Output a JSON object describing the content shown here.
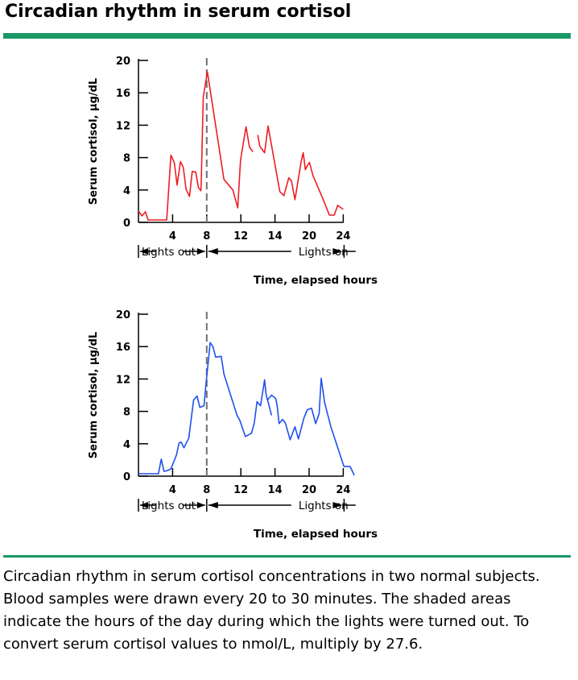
{
  "header": {
    "title": "Circadian rhythm in serum cortisol"
  },
  "caption": "Circadian rhythm in serum cortisol concentrations in two normal subjects. Blood samples were drawn every 20 to 30 minutes. The shaded areas indicate the hours of the day during which the lights were turned out. To convert serum cortisol values to nmol/L, multiply by 27.6.",
  "colors": {
    "accent": "#1a9866",
    "series_top": "#ee1c24",
    "series_bottom": "#1f4ff0"
  },
  "chart_data": [
    {
      "type": "line",
      "ylabel": "Serum cortisol, µg/dL",
      "xlabel": "Time, elapsed hours",
      "yticks": [
        0,
        4,
        8,
        12,
        16,
        20
      ],
      "xticks": [
        4,
        8,
        12,
        14,
        20,
        24
      ],
      "ylim": [
        0,
        20
      ],
      "lights_out_label": "Lights out",
      "lights_on_label": "Lights on",
      "series": [
        {
          "segments": [
            [
              [
                0,
                1.4
              ],
              [
                0.5,
                0.8
              ],
              [
                1,
                1.3
              ],
              [
                1.4,
                0.3
              ],
              [
                2,
                0.3
              ],
              [
                3,
                0.3
              ],
              [
                3.6,
                0.3
              ],
              [
                4.1,
                0.3
              ],
              [
                4.7,
                8.3
              ],
              [
                5.2,
                7.4
              ],
              [
                5.6,
                4.6
              ],
              [
                6.1,
                7.5
              ],
              [
                6.5,
                6.8
              ],
              [
                6.9,
                4.1
              ],
              [
                7.4,
                3.2
              ],
              [
                7.8,
                6.3
              ],
              [
                8.3,
                6.2
              ],
              [
                8.7,
                4.3
              ],
              [
                9.05,
                3.9
              ],
              [
                9.1,
                4.6
              ],
              [
                9.4,
                15.5
              ],
              [
                10.0,
                18.6
              ],
              [
                12.4,
                5.3
              ],
              [
                13.7,
                4.0
              ],
              [
                14.4,
                1.8
              ],
              [
                14.8,
                7.7
              ],
              [
                15.6,
                11.8
              ],
              [
                16.1,
                9.3
              ],
              [
                16.6,
                8.7
              ]
            ],
            [
              [
                17.3,
                10.8
              ],
              [
                17.6,
                9.4
              ],
              [
                18.3,
                8.6
              ],
              [
                18.8,
                11.9
              ],
              [
                20.5,
                3.8
              ],
              [
                21.1,
                3.3
              ],
              [
                21.8,
                5.5
              ],
              [
                22.2,
                5.1
              ],
              [
                22.7,
                2.8
              ],
              [
                23.6,
                7.5
              ],
              [
                23.9,
                8.6
              ],
              [
                24.2,
                6.5
              ],
              [
                24.5,
                7.0
              ],
              [
                24.8,
                7.4
              ],
              [
                25.3,
                5.8
              ],
              [
                26.7,
                3.0
              ],
              [
                27.7,
                0.9
              ],
              [
                28.4,
                0.9
              ],
              [
                28.9,
                2.1
              ],
              [
                29.7,
                1.6
              ]
            ]
          ]
        }
      ]
    },
    {
      "type": "line",
      "ylabel": "Serum cortisol, µg/dL",
      "xlabel": "Time, elapsed hours",
      "yticks": [
        0,
        4,
        8,
        12,
        16,
        20
      ],
      "xticks": [
        4,
        8,
        12,
        14,
        20,
        24
      ],
      "ylim": [
        0,
        20
      ],
      "lights_out_label": "Lights out",
      "lights_on_label": "Lights on",
      "series": [
        {
          "segments": [
            [
              [
                0,
                0.3
              ],
              [
                1,
                0.3
              ],
              [
                2,
                0.3
              ],
              [
                2.9,
                0.3
              ],
              [
                3.3,
                2.1
              ],
              [
                3.7,
                0.6
              ],
              [
                4.2,
                0.7
              ],
              [
                4.7,
                0.9
              ],
              [
                5.5,
                2.6
              ],
              [
                5.9,
                4.1
              ],
              [
                6.2,
                4.2
              ],
              [
                6.6,
                3.5
              ],
              [
                7.3,
                4.7
              ],
              [
                8.0,
                9.4
              ],
              [
                8.5,
                9.9
              ],
              [
                8.9,
                8.5
              ],
              [
                9.5,
                8.7
              ],
              [
                9.8,
                11.4
              ],
              [
                10.4,
                16.5
              ],
              [
                10.8,
                16.0
              ],
              [
                11.2,
                14.7
              ],
              [
                12.0,
                14.8
              ],
              [
                12.4,
                12.6
              ],
              [
                14.3,
                7.5
              ],
              [
                14.7,
                6.9
              ],
              [
                15.5,
                4.9
              ],
              [
                16.4,
                5.3
              ],
              [
                16.8,
                6.6
              ],
              [
                17.2,
                9.2
              ],
              [
                17.7,
                8.7
              ],
              [
                18.3,
                11.9
              ],
              [
                18.5,
                10.2
              ],
              [
                18.7,
                9.4
              ],
              [
                19.3,
                10.0
              ],
              [
                19.9,
                9.6
              ],
              [
                20.1,
                8.8
              ],
              [
                20.4,
                6.5
              ],
              [
                20.9,
                7.0
              ],
              [
                21.3,
                6.6
              ],
              [
                22.0,
                4.5
              ],
              [
                22.7,
                6.1
              ],
              [
                23.2,
                4.6
              ],
              [
                24.0,
                7.2
              ],
              [
                24.5,
                8.2
              ],
              [
                25.1,
                8.4
              ],
              [
                25.7,
                6.5
              ],
              [
                26.2,
                7.7
              ],
              [
                26.5,
                12.1
              ],
              [
                27.0,
                9.1
              ],
              [
                27.9,
                6.1
              ],
              [
                29.8,
                1.2
              ],
              [
                30.7,
                1.2
              ],
              [
                31.3,
                0.1
              ]
            ],
            [
              [
                18.7,
                9.5
              ],
              [
                19.3,
                7.5
              ]
            ]
          ]
        }
      ]
    }
  ]
}
